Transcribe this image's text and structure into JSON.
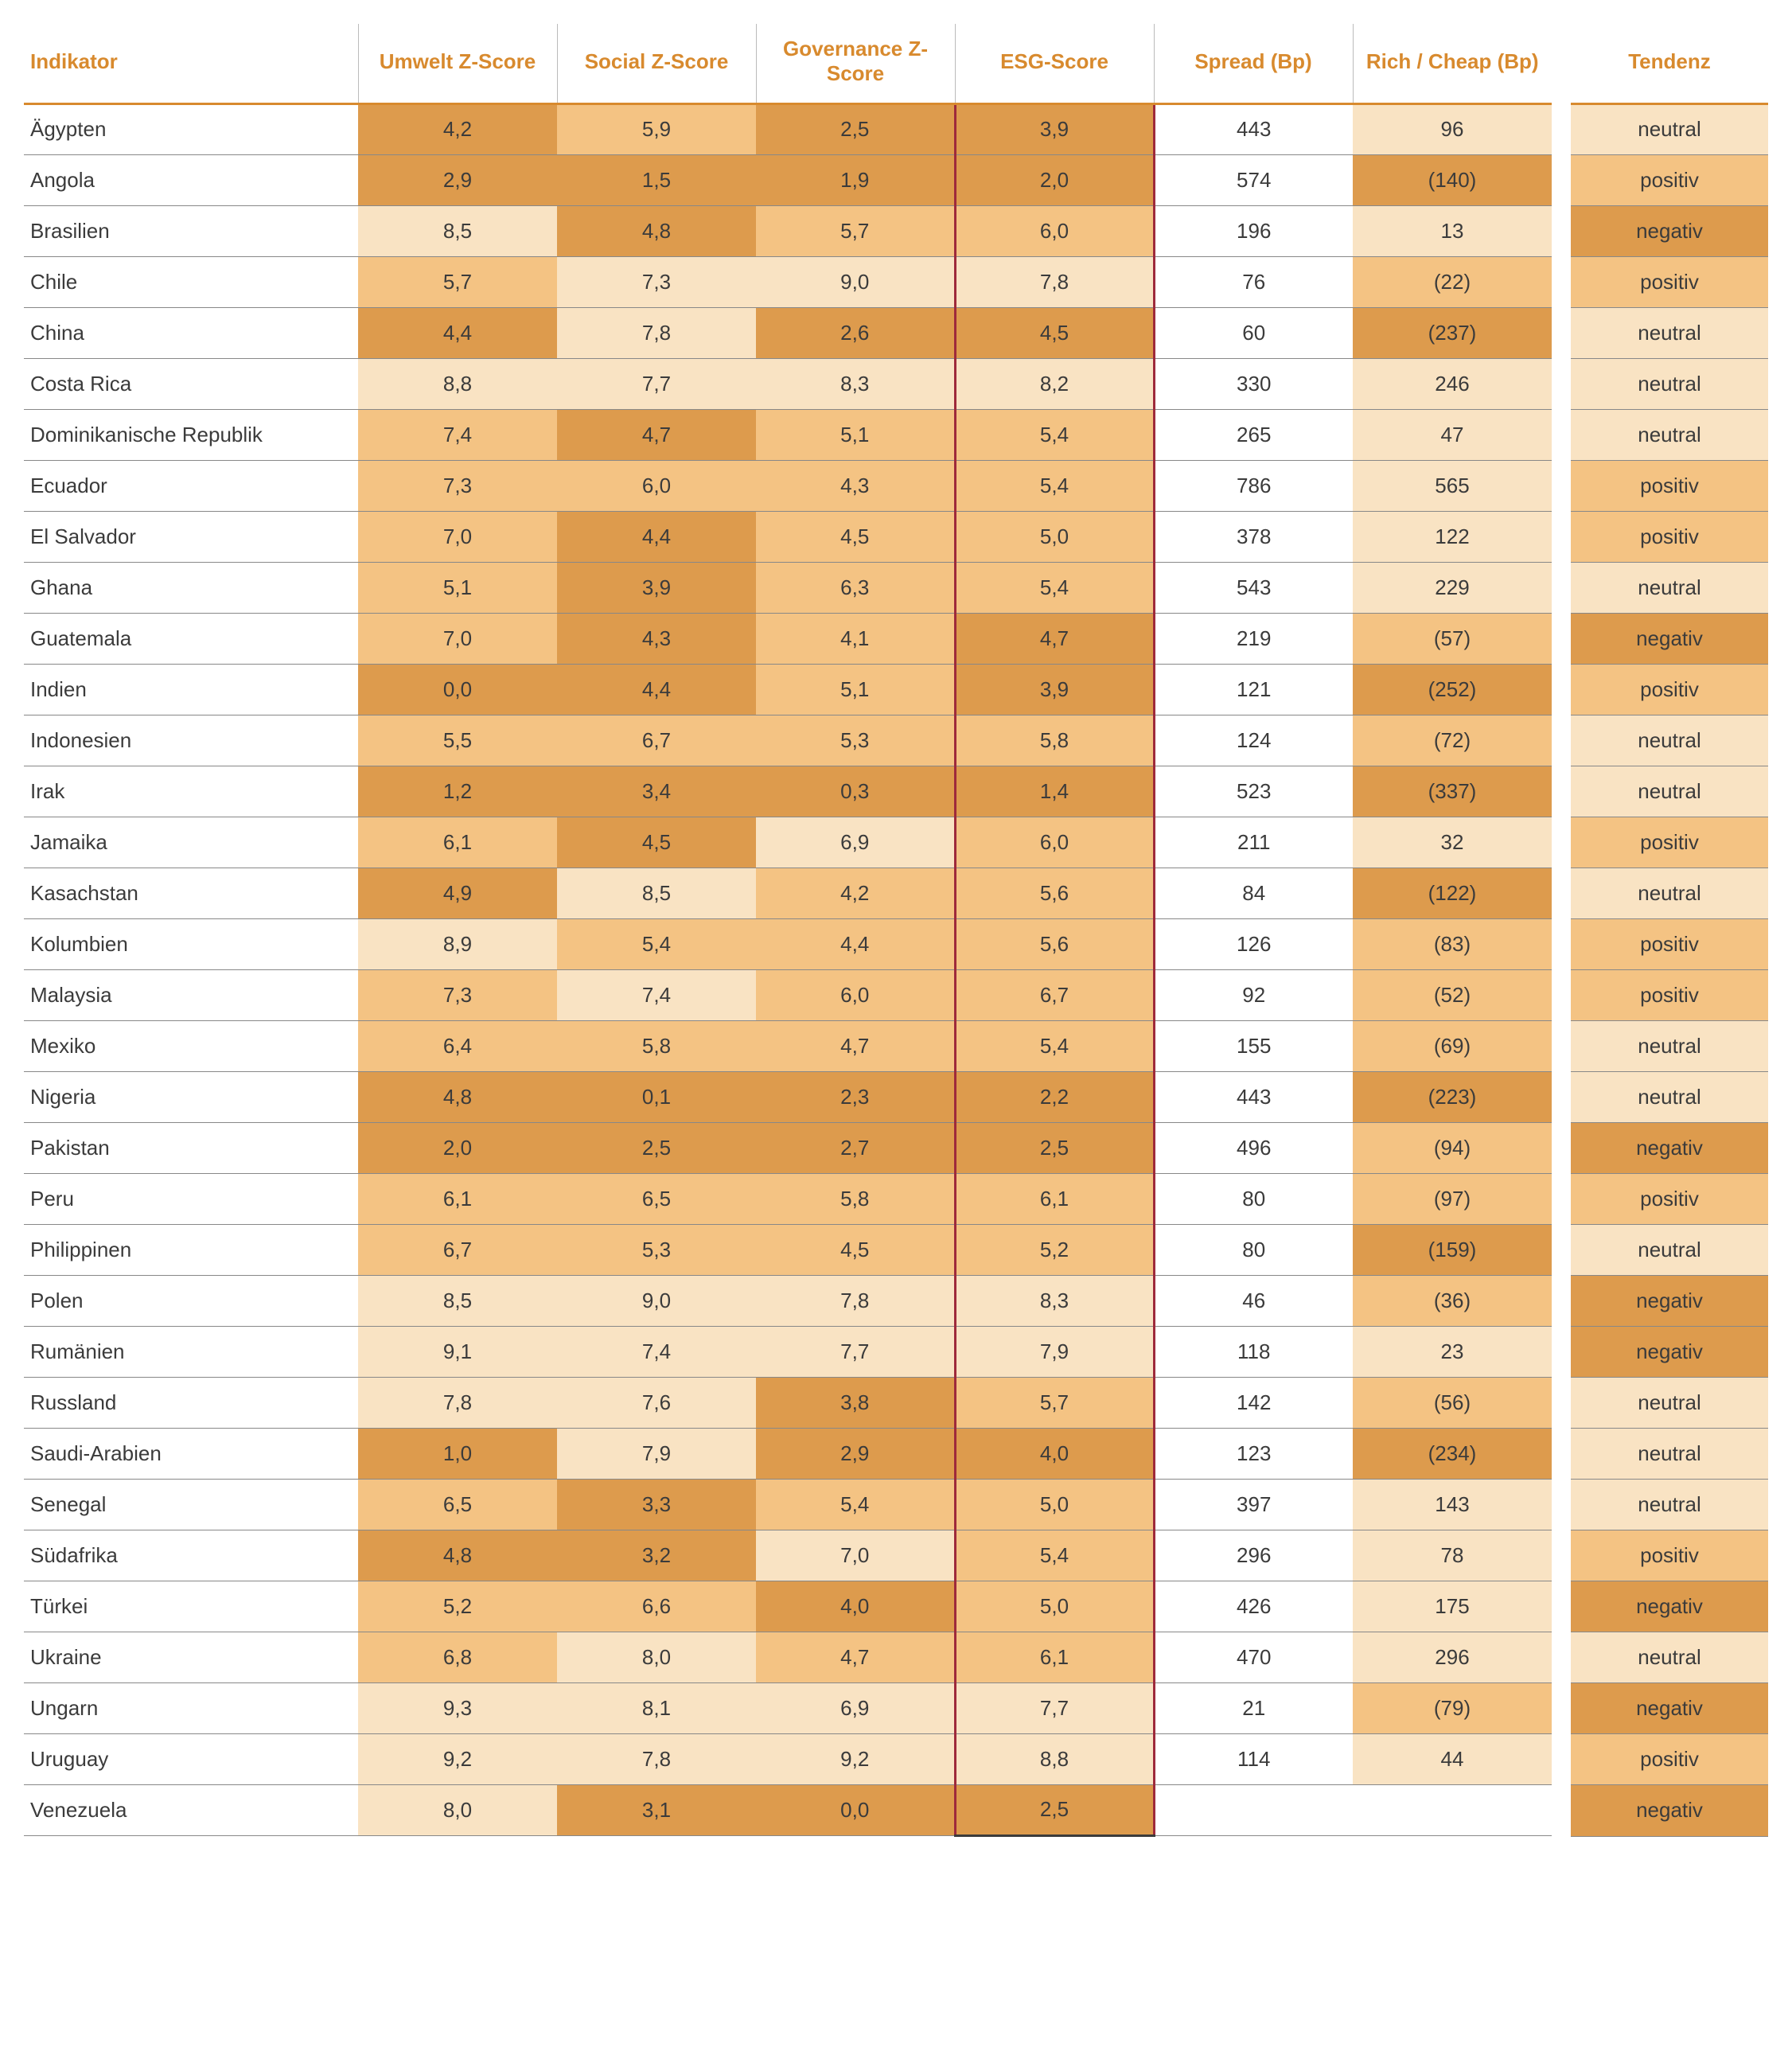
{
  "colors": {
    "header_text": "#d88a2e",
    "header_underline": "#d88a2e",
    "esg_border": "#9e2a3b",
    "shade_dark": "#dd9b4d",
    "shade_mid": "#f4c383",
    "shade_light": "#f9e3c3",
    "row_divider": "#888888",
    "text": "#3b3b3b"
  },
  "columns": {
    "indikator": "Indikator",
    "umwelt": "Umwelt Z-Score",
    "social": "Social Z-Score",
    "governance": "Governance Z-Score",
    "esg": "ESG-Score",
    "spread": "Spread (Bp)",
    "richcheap": "Rich / Cheap (Bp)",
    "tendenz": "Tendenz"
  },
  "shade_map": {
    "d": "shade_dark",
    "m": "shade_mid",
    "l": "shade_light"
  },
  "rows": [
    {
      "name": "Ägypten",
      "umwelt": "4,2",
      "us": "d",
      "social": "5,9",
      "ss": "m",
      "gov": "2,5",
      "gs": "d",
      "esg": "3,9",
      "es": "d",
      "spread": "443",
      "rc": "96",
      "rcs": "l",
      "tend": "neutral",
      "ts": "l"
    },
    {
      "name": "Angola",
      "umwelt": "2,9",
      "us": "d",
      "social": "1,5",
      "ss": "d",
      "gov": "1,9",
      "gs": "d",
      "esg": "2,0",
      "es": "d",
      "spread": "574",
      "rc": "(140)",
      "rcs": "d",
      "tend": "positiv",
      "ts": "m"
    },
    {
      "name": "Brasilien",
      "umwelt": "8,5",
      "us": "l",
      "social": "4,8",
      "ss": "d",
      "gov": "5,7",
      "gs": "m",
      "esg": "6,0",
      "es": "m",
      "spread": "196",
      "rc": "13",
      "rcs": "l",
      "tend": "negativ",
      "ts": "d"
    },
    {
      "name": "Chile",
      "umwelt": "5,7",
      "us": "m",
      "social": "7,3",
      "ss": "l",
      "gov": "9,0",
      "gs": "l",
      "esg": "7,8",
      "es": "l",
      "spread": "76",
      "rc": "(22)",
      "rcs": "m",
      "tend": "positiv",
      "ts": "m"
    },
    {
      "name": "China",
      "umwelt": "4,4",
      "us": "d",
      "social": "7,8",
      "ss": "l",
      "gov": "2,6",
      "gs": "d",
      "esg": "4,5",
      "es": "d",
      "spread": "60",
      "rc": "(237)",
      "rcs": "d",
      "tend": "neutral",
      "ts": "l"
    },
    {
      "name": "Costa Rica",
      "umwelt": "8,8",
      "us": "l",
      "social": "7,7",
      "ss": "l",
      "gov": "8,3",
      "gs": "l",
      "esg": "8,2",
      "es": "l",
      "spread": "330",
      "rc": "246",
      "rcs": "l",
      "tend": "neutral",
      "ts": "l"
    },
    {
      "name": "Dominikanische Republik",
      "umwelt": "7,4",
      "us": "m",
      "social": "4,7",
      "ss": "d",
      "gov": "5,1",
      "gs": "m",
      "esg": "5,4",
      "es": "m",
      "spread": "265",
      "rc": "47",
      "rcs": "l",
      "tend": "neutral",
      "ts": "l"
    },
    {
      "name": "Ecuador",
      "umwelt": "7,3",
      "us": "m",
      "social": "6,0",
      "ss": "m",
      "gov": "4,3",
      "gs": "m",
      "esg": "5,4",
      "es": "m",
      "spread": "786",
      "rc": "565",
      "rcs": "l",
      "tend": "positiv",
      "ts": "m"
    },
    {
      "name": "El Salvador",
      "umwelt": "7,0",
      "us": "m",
      "social": "4,4",
      "ss": "d",
      "gov": "4,5",
      "gs": "m",
      "esg": "5,0",
      "es": "m",
      "spread": "378",
      "rc": "122",
      "rcs": "l",
      "tend": "positiv",
      "ts": "m"
    },
    {
      "name": "Ghana",
      "umwelt": "5,1",
      "us": "m",
      "social": "3,9",
      "ss": "d",
      "gov": "6,3",
      "gs": "m",
      "esg": "5,4",
      "es": "m",
      "spread": "543",
      "rc": "229",
      "rcs": "l",
      "tend": "neutral",
      "ts": "l"
    },
    {
      "name": "Guatemala",
      "umwelt": "7,0",
      "us": "m",
      "social": "4,3",
      "ss": "d",
      "gov": "4,1",
      "gs": "m",
      "esg": "4,7",
      "es": "d",
      "spread": "219",
      "rc": "(57)",
      "rcs": "m",
      "tend": "negativ",
      "ts": "d"
    },
    {
      "name": "Indien",
      "umwelt": "0,0",
      "us": "d",
      "social": "4,4",
      "ss": "d",
      "gov": "5,1",
      "gs": "m",
      "esg": "3,9",
      "es": "d",
      "spread": "121",
      "rc": "(252)",
      "rcs": "d",
      "tend": "positiv",
      "ts": "m"
    },
    {
      "name": "Indonesien",
      "umwelt": "5,5",
      "us": "m",
      "social": "6,7",
      "ss": "m",
      "gov": "5,3",
      "gs": "m",
      "esg": "5,8",
      "es": "m",
      "spread": "124",
      "rc": "(72)",
      "rcs": "m",
      "tend": "neutral",
      "ts": "l"
    },
    {
      "name": "Irak",
      "umwelt": "1,2",
      "us": "d",
      "social": "3,4",
      "ss": "d",
      "gov": "0,3",
      "gs": "d",
      "esg": "1,4",
      "es": "d",
      "spread": "523",
      "rc": "(337)",
      "rcs": "d",
      "tend": "neutral",
      "ts": "l"
    },
    {
      "name": "Jamaika",
      "umwelt": "6,1",
      "us": "m",
      "social": "4,5",
      "ss": "d",
      "gov": "6,9",
      "gs": "l",
      "esg": "6,0",
      "es": "m",
      "spread": "211",
      "rc": "32",
      "rcs": "l",
      "tend": "positiv",
      "ts": "m"
    },
    {
      "name": "Kasachstan",
      "umwelt": "4,9",
      "us": "d",
      "social": "8,5",
      "ss": "l",
      "gov": "4,2",
      "gs": "m",
      "esg": "5,6",
      "es": "m",
      "spread": "84",
      "rc": "(122)",
      "rcs": "d",
      "tend": "neutral",
      "ts": "l"
    },
    {
      "name": "Kolumbien",
      "umwelt": "8,9",
      "us": "l",
      "social": "5,4",
      "ss": "m",
      "gov": "4,4",
      "gs": "m",
      "esg": "5,6",
      "es": "m",
      "spread": "126",
      "rc": "(83)",
      "rcs": "m",
      "tend": "positiv",
      "ts": "m"
    },
    {
      "name": "Malaysia",
      "umwelt": "7,3",
      "us": "m",
      "social": "7,4",
      "ss": "l",
      "gov": "6,0",
      "gs": "m",
      "esg": "6,7",
      "es": "m",
      "spread": "92",
      "rc": "(52)",
      "rcs": "m",
      "tend": "positiv",
      "ts": "m"
    },
    {
      "name": "Mexiko",
      "umwelt": "6,4",
      "us": "m",
      "social": "5,8",
      "ss": "m",
      "gov": "4,7",
      "gs": "m",
      "esg": "5,4",
      "es": "m",
      "spread": "155",
      "rc": "(69)",
      "rcs": "m",
      "tend": "neutral",
      "ts": "l"
    },
    {
      "name": "Nigeria",
      "umwelt": "4,8",
      "us": "d",
      "social": "0,1",
      "ss": "d",
      "gov": "2,3",
      "gs": "d",
      "esg": "2,2",
      "es": "d",
      "spread": "443",
      "rc": "(223)",
      "rcs": "d",
      "tend": "neutral",
      "ts": "l"
    },
    {
      "name": "Pakistan",
      "umwelt": "2,0",
      "us": "d",
      "social": "2,5",
      "ss": "d",
      "gov": "2,7",
      "gs": "d",
      "esg": "2,5",
      "es": "d",
      "spread": "496",
      "rc": "(94)",
      "rcs": "m",
      "tend": "negativ",
      "ts": "d"
    },
    {
      "name": "Peru",
      "umwelt": "6,1",
      "us": "m",
      "social": "6,5",
      "ss": "m",
      "gov": "5,8",
      "gs": "m",
      "esg": "6,1",
      "es": "m",
      "spread": "80",
      "rc": "(97)",
      "rcs": "m",
      "tend": "positiv",
      "ts": "m"
    },
    {
      "name": "Philippinen",
      "umwelt": "6,7",
      "us": "m",
      "social": "5,3",
      "ss": "m",
      "gov": "4,5",
      "gs": "m",
      "esg": "5,2",
      "es": "m",
      "spread": "80",
      "rc": "(159)",
      "rcs": "d",
      "tend": "neutral",
      "ts": "l"
    },
    {
      "name": "Polen",
      "umwelt": "8,5",
      "us": "l",
      "social": "9,0",
      "ss": "l",
      "gov": "7,8",
      "gs": "l",
      "esg": "8,3",
      "es": "l",
      "spread": "46",
      "rc": "(36)",
      "rcs": "m",
      "tend": "negativ",
      "ts": "d"
    },
    {
      "name": "Rumänien",
      "umwelt": "9,1",
      "us": "l",
      "social": "7,4",
      "ss": "l",
      "gov": "7,7",
      "gs": "l",
      "esg": "7,9",
      "es": "l",
      "spread": "118",
      "rc": "23",
      "rcs": "l",
      "tend": "negativ",
      "ts": "d"
    },
    {
      "name": "Russland",
      "umwelt": "7,8",
      "us": "l",
      "social": "7,6",
      "ss": "l",
      "gov": "3,8",
      "gs": "d",
      "esg": "5,7",
      "es": "m",
      "spread": "142",
      "rc": "(56)",
      "rcs": "m",
      "tend": "neutral",
      "ts": "l"
    },
    {
      "name": "Saudi-Arabien",
      "umwelt": "1,0",
      "us": "d",
      "social": "7,9",
      "ss": "l",
      "gov": "2,9",
      "gs": "d",
      "esg": "4,0",
      "es": "d",
      "spread": "123",
      "rc": "(234)",
      "rcs": "d",
      "tend": "neutral",
      "ts": "l"
    },
    {
      "name": "Senegal",
      "umwelt": "6,5",
      "us": "m",
      "social": "3,3",
      "ss": "d",
      "gov": "5,4",
      "gs": "m",
      "esg": "5,0",
      "es": "m",
      "spread": "397",
      "rc": "143",
      "rcs": "l",
      "tend": "neutral",
      "ts": "l"
    },
    {
      "name": "Südafrika",
      "umwelt": "4,8",
      "us": "d",
      "social": "3,2",
      "ss": "d",
      "gov": "7,0",
      "gs": "l",
      "esg": "5,4",
      "es": "m",
      "spread": "296",
      "rc": "78",
      "rcs": "l",
      "tend": "positiv",
      "ts": "m"
    },
    {
      "name": "Türkei",
      "umwelt": "5,2",
      "us": "m",
      "social": "6,6",
      "ss": "m",
      "gov": "4,0",
      "gs": "d",
      "esg": "5,0",
      "es": "m",
      "spread": "426",
      "rc": "175",
      "rcs": "l",
      "tend": "negativ",
      "ts": "d"
    },
    {
      "name": "Ukraine",
      "umwelt": "6,8",
      "us": "m",
      "social": "8,0",
      "ss": "l",
      "gov": "4,7",
      "gs": "m",
      "esg": "6,1",
      "es": "m",
      "spread": "470",
      "rc": "296",
      "rcs": "l",
      "tend": "neutral",
      "ts": "l"
    },
    {
      "name": "Ungarn",
      "umwelt": "9,3",
      "us": "l",
      "social": "8,1",
      "ss": "l",
      "gov": "6,9",
      "gs": "l",
      "esg": "7,7",
      "es": "l",
      "spread": "21",
      "rc": "(79)",
      "rcs": "m",
      "tend": "negativ",
      "ts": "d"
    },
    {
      "name": "Uruguay",
      "umwelt": "9,2",
      "us": "l",
      "social": "7,8",
      "ss": "l",
      "gov": "9,2",
      "gs": "l",
      "esg": "8,8",
      "es": "l",
      "spread": "114",
      "rc": "44",
      "rcs": "l",
      "tend": "positiv",
      "ts": "m"
    },
    {
      "name": "Venezuela",
      "umwelt": "8,0",
      "us": "l",
      "social": "3,1",
      "ss": "d",
      "gov": "0,0",
      "gs": "d",
      "esg": "2,5",
      "es": "d",
      "spread": "",
      "rc": "",
      "rcs": "",
      "tend": "negativ",
      "ts": "d"
    }
  ]
}
